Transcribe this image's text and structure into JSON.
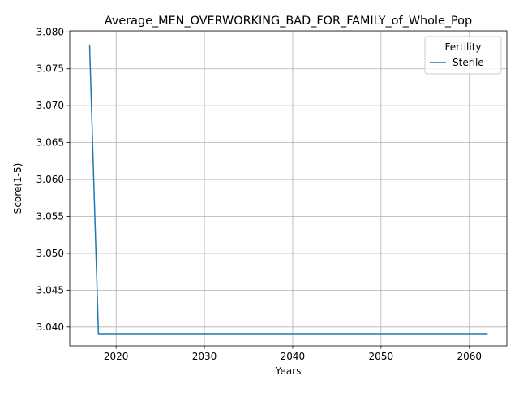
{
  "chart_data": {
    "type": "line",
    "title": "Average_MEN_OVERWORKING_BAD_FOR_FAMILY_of_Whole_Pop",
    "xlabel": "Years",
    "ylabel": "Score(1-5)",
    "xlim": [
      2014.75,
      2064.25
    ],
    "ylim": [
      3.03745,
      3.08014
    ],
    "xticks": [
      2020,
      2030,
      2040,
      2050,
      2060
    ],
    "yticks": [
      3.04,
      3.045,
      3.05,
      3.055,
      3.06,
      3.065,
      3.07,
      3.075,
      3.08
    ],
    "grid": true,
    "legend": {
      "title": "Fertility",
      "placement": "upper right"
    },
    "series": [
      {
        "name": "Sterile",
        "color": "#1f77b4",
        "x": [
          2017,
          2018,
          2019,
          2020,
          2021,
          2022,
          2023,
          2024,
          2025,
          2026,
          2027,
          2028,
          2029,
          2030,
          2031,
          2032,
          2033,
          2034,
          2035,
          2036,
          2037,
          2038,
          2039,
          2040,
          2041,
          2042,
          2043,
          2044,
          2045,
          2046,
          2047,
          2048,
          2049,
          2050,
          2051,
          2052,
          2053,
          2054,
          2055,
          2056,
          2057,
          2058,
          2059,
          2060,
          2061,
          2062
        ],
        "values": [
          3.0782,
          3.0391,
          3.0391,
          3.0391,
          3.0391,
          3.0391,
          3.0391,
          3.0391,
          3.0391,
          3.0391,
          3.0391,
          3.0391,
          3.0391,
          3.0391,
          3.0391,
          3.0391,
          3.0391,
          3.0391,
          3.0391,
          3.0391,
          3.0391,
          3.0391,
          3.0391,
          3.0391,
          3.0391,
          3.0391,
          3.0391,
          3.0391,
          3.0391,
          3.0391,
          3.0391,
          3.0391,
          3.0391,
          3.0391,
          3.0391,
          3.0391,
          3.0391,
          3.0391,
          3.0391,
          3.0391,
          3.0391,
          3.0391,
          3.0391,
          3.0391,
          3.0391,
          3.0391
        ]
      }
    ]
  }
}
